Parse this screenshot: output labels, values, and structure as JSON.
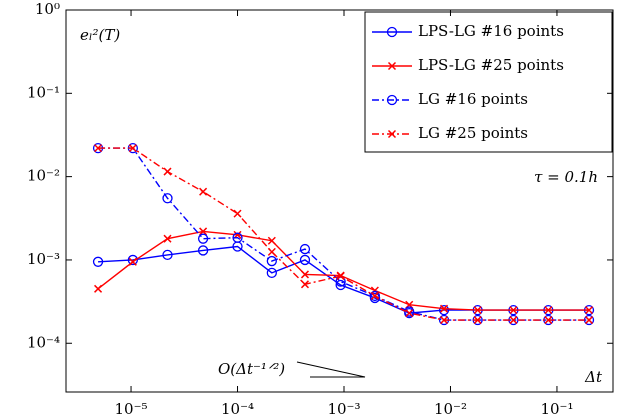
{
  "chart_data": {
    "type": "line",
    "log_x": true,
    "log_y": true,
    "annotations": [
      "eₗ²(T)",
      "τ = 0.1h",
      "Δt",
      "O(Δt⁻¹ᐟ²)"
    ],
    "x": [
      4.9e-06,
      1.04e-05,
      2.2e-05,
      4.75e-05,
      0.0001,
      0.00021,
      0.00043,
      0.00093,
      0.00195,
      0.0041,
      0.0087,
      0.018,
      0.039,
      0.083,
      0.2
    ],
    "series": [
      {
        "name": "LPS-LG #16  points",
        "color": "#0000ff",
        "dash": "solid",
        "marker": "o",
        "values": [
          0.00095,
          0.001,
          0.00115,
          0.0013,
          0.00145,
          0.0007,
          0.001,
          0.0005,
          0.00035,
          0.00023,
          0.00025,
          0.00025,
          0.00025,
          0.00025,
          0.00025
        ]
      },
      {
        "name": "LPS-LG #25  points",
        "color": "#ff0000",
        "dash": "solid",
        "marker": "x",
        "values": [
          0.00045,
          0.00095,
          0.0018,
          0.0022,
          0.002,
          0.0017,
          0.00067,
          0.00065,
          0.00043,
          0.00029,
          0.00026,
          0.00025,
          0.00025,
          0.00025,
          0.00025
        ]
      },
      {
        "name": "LG #16  points",
        "color": "#0000ff",
        "dash": "dashdot",
        "marker": "o",
        "values": [
          0.022,
          0.022,
          0.0055,
          0.0018,
          0.00185,
          0.00097,
          0.00135,
          0.00055,
          0.00037,
          0.00024,
          0.00019,
          0.00019,
          0.00019,
          0.00019,
          0.00019
        ]
      },
      {
        "name": "LG #25  points",
        "color": "#ff0000",
        "dash": "dashdot",
        "marker": "x",
        "values": [
          0.022,
          0.022,
          0.0115,
          0.0066,
          0.0036,
          0.00125,
          0.00051,
          0.00064,
          0.00037,
          0.00023,
          0.00019,
          0.00019,
          0.00019,
          0.00019,
          0.00019
        ]
      }
    ],
    "xlim": [
      2.45e-06,
      0.336
    ],
    "ylim": [
      2.6e-05,
      1
    ],
    "xticks": [
      {
        "value": 1e-05,
        "label": "10⁻⁵"
      },
      {
        "value": 0.0001,
        "label": "10⁻⁴"
      },
      {
        "value": 0.001,
        "label": "10⁻³"
      },
      {
        "value": 0.01,
        "label": "10⁻²"
      },
      {
        "value": 0.1,
        "label": "10⁻¹"
      }
    ],
    "yticks": [
      {
        "value": 0.0001,
        "label": "10⁻⁴"
      },
      {
        "value": 0.001,
        "label": "10⁻³"
      },
      {
        "value": 0.01,
        "label": "10⁻²"
      },
      {
        "value": 0.1,
        "label": "10⁻¹"
      },
      {
        "value": 1,
        "label": "10⁰"
      }
    ],
    "legend": "upper right",
    "grid": false
  }
}
